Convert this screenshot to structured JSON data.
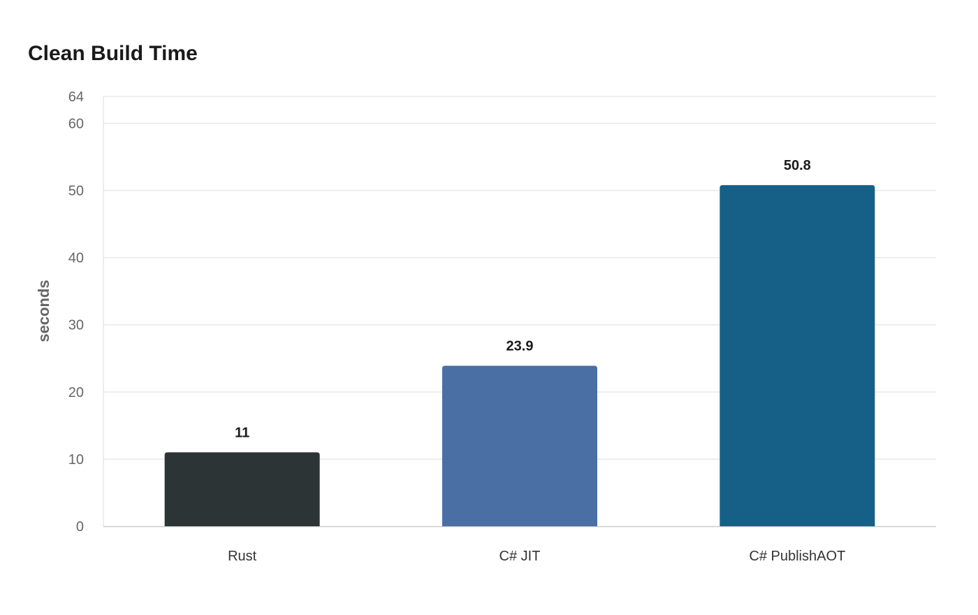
{
  "chart_data": {
    "type": "bar",
    "title": "Clean Build Time",
    "xlabel": "",
    "ylabel": "seconds",
    "categories": [
      "Rust",
      "C# JIT",
      "C# PublishAOT"
    ],
    "values": [
      11,
      23.9,
      50.8
    ],
    "value_labels": [
      "11",
      "23.9",
      "50.8"
    ],
    "colors": [
      "#2d3436",
      "#4a6fa5",
      "#166088"
    ],
    "ylim": [
      0,
      64
    ],
    "yticks": [
      0,
      10,
      20,
      30,
      40,
      50,
      60,
      64
    ],
    "grid": true,
    "legend": "none"
  }
}
